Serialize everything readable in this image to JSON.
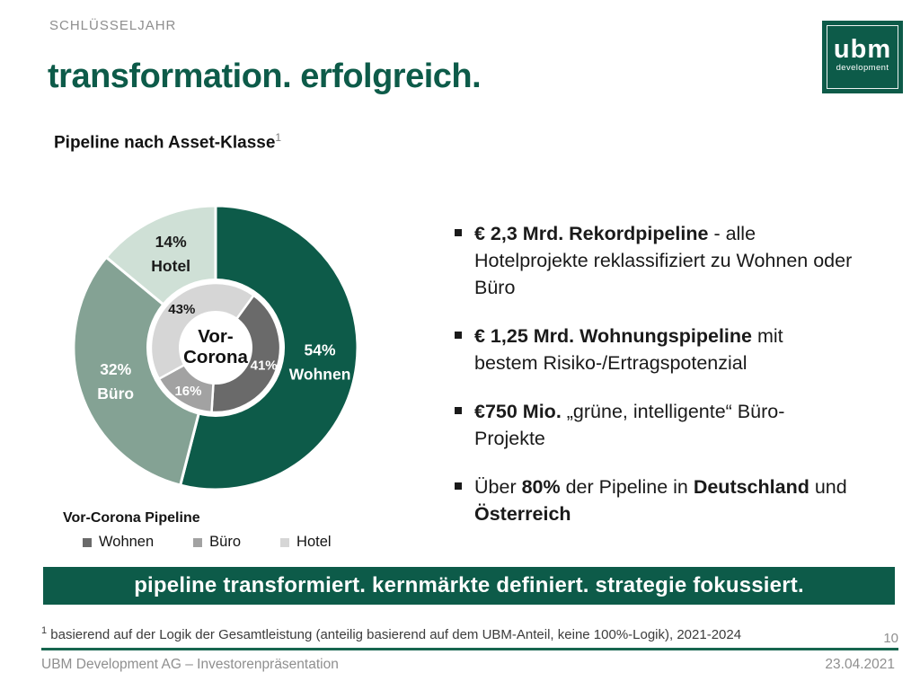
{
  "slide": {
    "eyebrow": "SCHLÜSSELJAHR",
    "title": "transformation. erfolgreich.",
    "page_number": "10"
  },
  "logo": {
    "brand": "ubm",
    "sub": "development"
  },
  "section": {
    "heading": "Pipeline nach Asset-Klasse",
    "footnote_ref": "1"
  },
  "chart_data": {
    "type": "pie",
    "title": "Pipeline nach Asset-Klasse",
    "unit": "%",
    "rings": [
      {
        "name": "aktuelle-pipeline-aussen",
        "start_angle": 0,
        "inner_radius": 77,
        "outer_radius": 158,
        "label_radius": 117,
        "show_category": true,
        "segments": [
          {
            "label": "Wohnen",
            "value": 54,
            "color": "#0d5b49",
            "text_color": "#ffffff"
          },
          {
            "label": "Büro",
            "value": 32,
            "color": "#84a294",
            "text_color": "#ffffff"
          },
          {
            "label": "Hotel",
            "value": 14,
            "color": "#cfe0d6",
            "text_color": "#1a1a1a"
          }
        ]
      },
      {
        "name": "vor-corona-innen",
        "start_angle": 36,
        "inner_radius": 41,
        "outer_radius": 72,
        "label_radius": 57,
        "show_category": false,
        "segments": [
          {
            "label": "Wohnen",
            "value": 41,
            "color": "#6a6a6a",
            "text_color": "#ffffff"
          },
          {
            "label": "Büro",
            "value": 16,
            "color": "#a2a2a2",
            "text_color": "#ffffff"
          },
          {
            "label": "Hotel",
            "value": 43,
            "color": "#d6d6d6",
            "text_color": "#1a1a1a"
          }
        ]
      }
    ],
    "center_label_lines": [
      "Vor-",
      "Corona"
    ]
  },
  "legend": {
    "title": "Vor-Corona Pipeline",
    "items": [
      {
        "label": "Wohnen",
        "color": "#6a6a6a"
      },
      {
        "label": "Büro",
        "color": "#a2a2a2"
      },
      {
        "label": "Hotel",
        "color": "#d6d6d6"
      }
    ]
  },
  "bullets": [
    {
      "lines": [
        [
          {
            "text": "€ 2,3 Mrd. Rekordpipeline",
            "bold": true
          },
          {
            "text": " - alle",
            "bold": false
          }
        ],
        [
          {
            "text": "Hotelprojekte reklassifiziert zu Wohnen oder",
            "bold": false
          }
        ],
        [
          {
            "text": "Büro",
            "bold": false
          }
        ]
      ]
    },
    {
      "lines": [
        [
          {
            "text": "€ 1,25 Mrd. Wohnungspipeline",
            "bold": true
          },
          {
            "text": " mit",
            "bold": false
          }
        ],
        [
          {
            "text": "bestem Risiko-/Ertragspotenzial",
            "bold": false
          }
        ]
      ]
    },
    {
      "lines": [
        [
          {
            "text": "€750 Mio.",
            "bold": true
          },
          {
            "text": " „grüne, intelligente“ Büro-",
            "bold": false
          }
        ],
        [
          {
            "text": "Projekte",
            "bold": false
          }
        ]
      ]
    },
    {
      "lines": [
        [
          {
            "text": "Über ",
            "bold": false
          },
          {
            "text": "80%",
            "bold": true
          },
          {
            "text": " der Pipeline in ",
            "bold": false
          },
          {
            "text": "Deutschland",
            "bold": true
          },
          {
            "text": " und",
            "bold": false
          }
        ],
        [
          {
            "text": "Österreich",
            "bold": true
          }
        ]
      ]
    }
  ],
  "banner": {
    "text": "pipeline transformiert. kernmärkte definiert. strategie fokussiert."
  },
  "footnote": {
    "ref": "1",
    "text": " basierend auf der Logik der Gesamtleistung (anteilig basierend auf dem UBM-Anteil, keine 100%-Logik), 2021-2024"
  },
  "footer": {
    "left": "UBM Development AG – Investorenpräsentation",
    "right": "23.04.2021"
  },
  "colors": {
    "accent_green": "#0d5b49",
    "separator_green": "#17664f",
    "muted_gray": "#8f8f8f"
  }
}
